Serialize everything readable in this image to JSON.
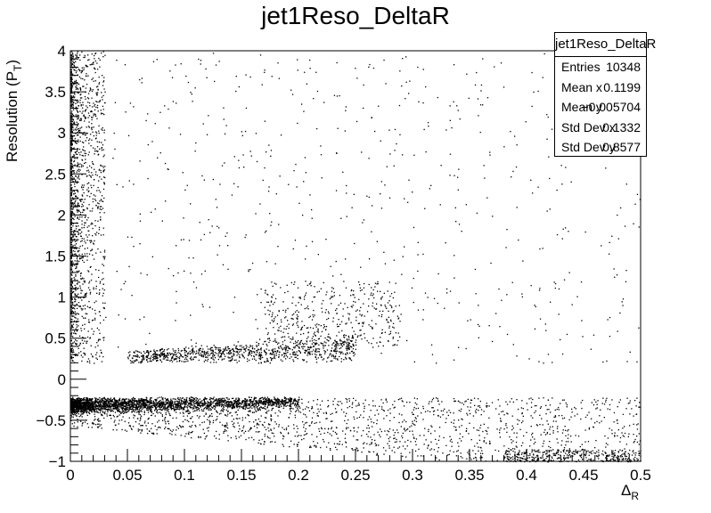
{
  "chart_data": {
    "type": "scatter",
    "title": "jet1Reso_DeltaR",
    "xlabel": "Δ",
    "xlabel_sub": "R",
    "ylabel": "Resolution (P",
    "ylabel_sub": "T",
    "ylabel_close": ")",
    "xlim": [
      0,
      0.5
    ],
    "ylim": [
      -1,
      4
    ],
    "x_ticks": [
      "0",
      "0.05",
      "0.1",
      "0.15",
      "0.2",
      "0.25",
      "0.3",
      "0.35",
      "0.4",
      "0.45",
      "0.5"
    ],
    "y_ticks": [
      "−1",
      "−0.5",
      "0",
      "0.5",
      "1",
      "1.5",
      "2",
      "2.5",
      "3",
      "3.5",
      "4"
    ],
    "grid": false,
    "stats": {
      "title": "jet1Reso_DeltaR",
      "rows": [
        {
          "label": "Entries",
          "value": "10348"
        },
        {
          "label": "Mean x",
          "value": "0.1199"
        },
        {
          "label": "Mean y",
          "value": "−0.005704"
        },
        {
          "label": "Std Dev x",
          "value": "0.1332"
        },
        {
          "label": "Std Dev y",
          "value": "0.8577"
        }
      ]
    },
    "point_color": "#000000"
  }
}
